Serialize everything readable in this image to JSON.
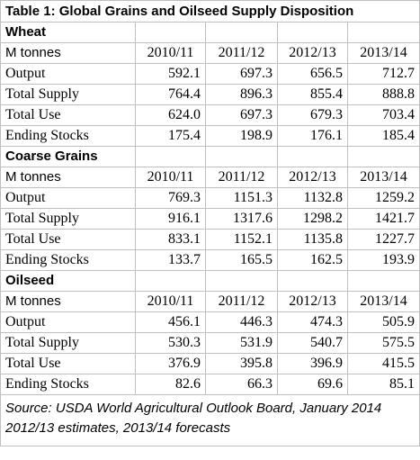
{
  "table": {
    "title": "Table 1: Global Grains and Oilseed Supply Disposition",
    "unit_label": "M tonnes",
    "years": [
      "2010/11",
      "2011/12",
      "2012/13",
      "2013/14"
    ],
    "sections": [
      {
        "name": "Wheat",
        "rows": [
          {
            "label": "Output",
            "values": [
              "592.1",
              "697.3",
              "656.5",
              "712.7"
            ]
          },
          {
            "label": "Total Supply",
            "values": [
              "764.4",
              "896.3",
              "855.4",
              "888.8"
            ]
          },
          {
            "label": "Total Use",
            "values": [
              "624.0",
              "697.3",
              "679.3",
              "703.4"
            ]
          },
          {
            "label": "Ending Stocks",
            "values": [
              "175.4",
              "198.9",
              "176.1",
              "185.4"
            ]
          }
        ]
      },
      {
        "name": "Coarse Grains",
        "rows": [
          {
            "label": "Output",
            "values": [
              "769.3",
              "1151.3",
              "1132.8",
              "1259.2"
            ]
          },
          {
            "label": "Total Supply",
            "values": [
              "916.1",
              "1317.6",
              "1298.2",
              "1421.7"
            ]
          },
          {
            "label": "Total Use",
            "values": [
              "833.1",
              "1152.1",
              "1135.8",
              "1227.7"
            ]
          },
          {
            "label": "Ending Stocks",
            "values": [
              "133.7",
              "165.5",
              "162.5",
              "193.9"
            ]
          }
        ]
      },
      {
        "name": "Oilseed",
        "rows": [
          {
            "label": "Output",
            "values": [
              "456.1",
              "446.3",
              "474.3",
              "505.9"
            ]
          },
          {
            "label": "Total Supply",
            "values": [
              "530.3",
              "531.9",
              "540.7",
              "575.5"
            ]
          },
          {
            "label": "Total Use",
            "values": [
              "376.9",
              "395.8",
              "396.9",
              "415.5"
            ]
          },
          {
            "label": "Ending Stocks",
            "values": [
              "82.6",
              "66.3",
              "69.6",
              "85.1"
            ]
          }
        ]
      }
    ],
    "source_lines": [
      "Source: USDA World Agricultural Outlook Board, January 2014",
      "2012/13 estimates, 2013/14 forecasts"
    ]
  }
}
